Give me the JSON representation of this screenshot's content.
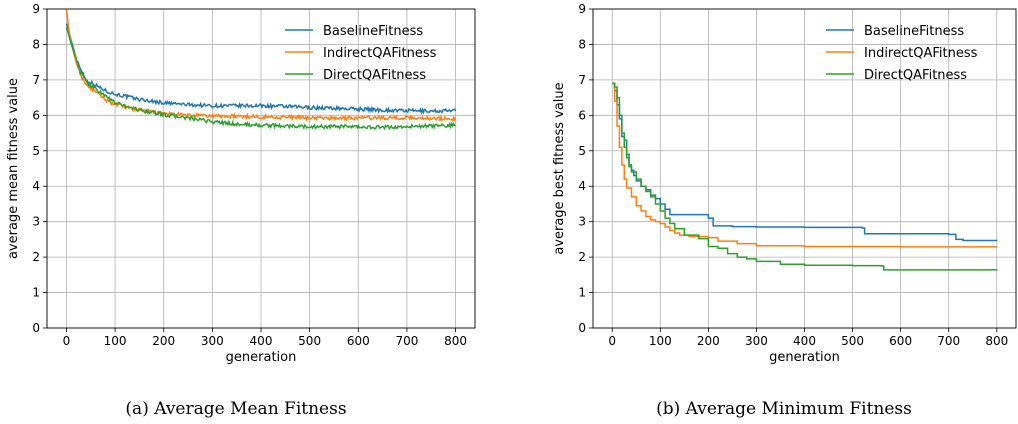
{
  "chart_data": [
    {
      "type": "line",
      "caption": "(a) Average Mean Fitness",
      "xlabel": "generation",
      "ylabel": "average mean fitness value",
      "xlim": [
        -40,
        840
      ],
      "ylim": [
        0,
        9
      ],
      "xticks": [
        0,
        100,
        200,
        300,
        400,
        500,
        600,
        700,
        800
      ],
      "yticks": [
        0,
        1,
        2,
        3,
        4,
        5,
        6,
        7,
        8,
        9
      ],
      "grid": true,
      "legend": "top-right",
      "series": [
        {
          "name": "BaselineFitness",
          "color": "#1f77b4",
          "noise": 0.05,
          "points": [
            [
              0,
              8.6
            ],
            [
              10,
              8.1
            ],
            [
              20,
              7.6
            ],
            [
              30,
              7.3
            ],
            [
              40,
              7.0
            ],
            [
              60,
              6.85
            ],
            [
              80,
              6.7
            ],
            [
              100,
              6.6
            ],
            [
              150,
              6.45
            ],
            [
              200,
              6.35
            ],
            [
              250,
              6.3
            ],
            [
              300,
              6.27
            ],
            [
              350,
              6.27
            ],
            [
              400,
              6.27
            ],
            [
              450,
              6.25
            ],
            [
              500,
              6.22
            ],
            [
              550,
              6.2
            ],
            [
              600,
              6.18
            ],
            [
              650,
              6.15
            ],
            [
              700,
              6.13
            ],
            [
              750,
              6.12
            ],
            [
              800,
              6.13
            ]
          ]
        },
        {
          "name": "IndirectQAFitness",
          "color": "#ff7f0e",
          "noise": 0.05,
          "points": [
            [
              0,
              9.0
            ],
            [
              5,
              8.4
            ],
            [
              10,
              8.0
            ],
            [
              20,
              7.5
            ],
            [
              30,
              7.1
            ],
            [
              40,
              6.9
            ],
            [
              60,
              6.65
            ],
            [
              80,
              6.45
            ],
            [
              100,
              6.3
            ],
            [
              150,
              6.15
            ],
            [
              200,
              6.05
            ],
            [
              250,
              6.0
            ],
            [
              300,
              5.98
            ],
            [
              350,
              5.97
            ],
            [
              400,
              5.96
            ],
            [
              450,
              5.95
            ],
            [
              500,
              5.93
            ],
            [
              550,
              5.92
            ],
            [
              600,
              5.93
            ],
            [
              650,
              5.93
            ],
            [
              700,
              5.93
            ],
            [
              750,
              5.92
            ],
            [
              800,
              5.9
            ]
          ]
        },
        {
          "name": "DirectQAFitness",
          "color": "#2ca02c",
          "noise": 0.05,
          "points": [
            [
              0,
              8.5
            ],
            [
              10,
              8.0
            ],
            [
              20,
              7.6
            ],
            [
              30,
              7.2
            ],
            [
              40,
              6.95
            ],
            [
              60,
              6.75
            ],
            [
              80,
              6.55
            ],
            [
              100,
              6.35
            ],
            [
              150,
              6.15
            ],
            [
              200,
              6.02
            ],
            [
              250,
              5.92
            ],
            [
              300,
              5.82
            ],
            [
              350,
              5.75
            ],
            [
              400,
              5.72
            ],
            [
              450,
              5.7
            ],
            [
              500,
              5.68
            ],
            [
              550,
              5.68
            ],
            [
              600,
              5.67
            ],
            [
              650,
              5.66
            ],
            [
              700,
              5.68
            ],
            [
              750,
              5.7
            ],
            [
              800,
              5.72
            ]
          ]
        }
      ]
    },
    {
      "type": "line",
      "caption": "(b) Average Minimum Fitness",
      "xlabel": "generation",
      "ylabel": "average best fitness value",
      "xlim": [
        -40,
        840
      ],
      "ylim": [
        0,
        9
      ],
      "xticks": [
        0,
        100,
        200,
        300,
        400,
        500,
        600,
        700,
        800
      ],
      "yticks": [
        0,
        1,
        2,
        3,
        4,
        5,
        6,
        7,
        8,
        9
      ],
      "grid": true,
      "legend": "top-right",
      "series": [
        {
          "name": "BaselineFitness",
          "color": "#1f77b4",
          "step": true,
          "points": [
            [
              0,
              6.9
            ],
            [
              5,
              6.7
            ],
            [
              10,
              6.3
            ],
            [
              15,
              5.9
            ],
            [
              20,
              5.4
            ],
            [
              25,
              5.3
            ],
            [
              30,
              4.9
            ],
            [
              35,
              4.6
            ],
            [
              40,
              4.45
            ],
            [
              45,
              4.3
            ],
            [
              50,
              4.15
            ],
            [
              60,
              4.0
            ],
            [
              70,
              3.9
            ],
            [
              80,
              3.75
            ],
            [
              90,
              3.65
            ],
            [
              100,
              3.5
            ],
            [
              110,
              3.35
            ],
            [
              120,
              3.2
            ],
            [
              200,
              3.1
            ],
            [
              210,
              2.88
            ],
            [
              250,
              2.86
            ],
            [
              300,
              2.85
            ],
            [
              400,
              2.84
            ],
            [
              520,
              2.82
            ],
            [
              525,
              2.66
            ],
            [
              700,
              2.64
            ],
            [
              715,
              2.5
            ],
            [
              730,
              2.47
            ],
            [
              800,
              2.46
            ]
          ]
        },
        {
          "name": "IndirectQAFitness",
          "color": "#ff7f0e",
          "step": true,
          "points": [
            [
              0,
              6.9
            ],
            [
              5,
              6.4
            ],
            [
              10,
              5.7
            ],
            [
              15,
              5.1
            ],
            [
              20,
              4.6
            ],
            [
              25,
              4.2
            ],
            [
              30,
              3.95
            ],
            [
              40,
              3.7
            ],
            [
              50,
              3.45
            ],
            [
              60,
              3.3
            ],
            [
              70,
              3.15
            ],
            [
              80,
              3.05
            ],
            [
              90,
              3.0
            ],
            [
              100,
              2.95
            ],
            [
              110,
              2.85
            ],
            [
              120,
              2.75
            ],
            [
              130,
              2.68
            ],
            [
              140,
              2.62
            ],
            [
              160,
              2.58
            ],
            [
              200,
              2.55
            ],
            [
              220,
              2.45
            ],
            [
              260,
              2.38
            ],
            [
              300,
              2.32
            ],
            [
              400,
              2.3
            ],
            [
              500,
              2.3
            ],
            [
              600,
              2.29
            ],
            [
              800,
              2.28
            ]
          ]
        },
        {
          "name": "DirectQAFitness",
          "color": "#2ca02c",
          "step": true,
          "points": [
            [
              0,
              6.9
            ],
            [
              5,
              6.8
            ],
            [
              10,
              6.5
            ],
            [
              15,
              6.0
            ],
            [
              20,
              5.5
            ],
            [
              25,
              5.1
            ],
            [
              30,
              4.8
            ],
            [
              35,
              4.55
            ],
            [
              40,
              4.4
            ],
            [
              50,
              4.2
            ],
            [
              60,
              4.0
            ],
            [
              70,
              3.85
            ],
            [
              80,
              3.7
            ],
            [
              90,
              3.5
            ],
            [
              100,
              3.3
            ],
            [
              110,
              3.1
            ],
            [
              120,
              2.95
            ],
            [
              130,
              2.8
            ],
            [
              150,
              2.62
            ],
            [
              180,
              2.52
            ],
            [
              200,
              2.3
            ],
            [
              220,
              2.25
            ],
            [
              240,
              2.1
            ],
            [
              260,
              2.0
            ],
            [
              280,
              1.95
            ],
            [
              300,
              1.88
            ],
            [
              350,
              1.8
            ],
            [
              400,
              1.77
            ],
            [
              500,
              1.76
            ],
            [
              560,
              1.75
            ],
            [
              565,
              1.64
            ],
            [
              800,
              1.62
            ]
          ]
        }
      ]
    }
  ]
}
